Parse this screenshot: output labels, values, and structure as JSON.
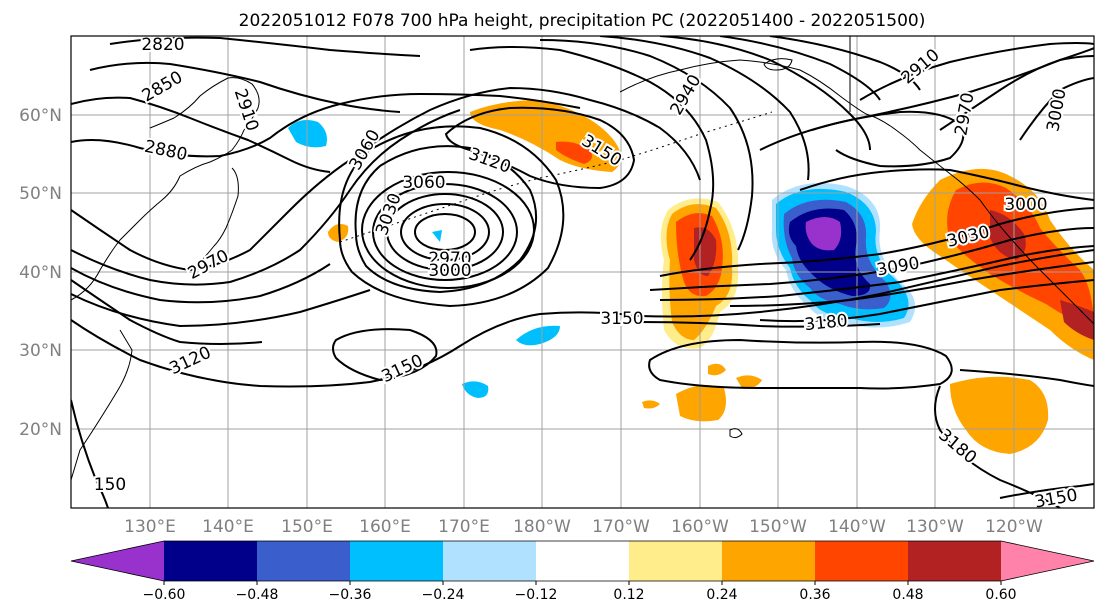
{
  "title": "2022051012 F078 700 hPa height, precipitation PC (2022051400 - 2022051500)",
  "lat_labels": [
    "60°N",
    "50°N",
    "40°N",
    "30°N",
    "20°N"
  ],
  "lon_labels": [
    "130°E",
    "140°E",
    "150°E",
    "160°E",
    "170°E",
    "180°W",
    "170°W",
    "160°W",
    "150°W",
    "140°W",
    "130°W",
    "120°W"
  ],
  "contour_labels": [
    "2820",
    "2850",
    "2910",
    "2880",
    "3060",
    "2940",
    "3120",
    "3150",
    "3060",
    "3030",
    "2970",
    "3000",
    "2970",
    "3120",
    "3150",
    "3150",
    "3180",
    "3090",
    "3030",
    "3000",
    "2910",
    "2970",
    "3000",
    "3180",
    "3150",
    "150"
  ],
  "colorbar": {
    "colors": [
      "#9932cc",
      "#00008b",
      "#3a5fcd",
      "#00bfff",
      "#b0e2ff",
      "#ffffff",
      "#ffec8b",
      "#ffa500",
      "#ff4500",
      "#b22222",
      "#ff82ab"
    ],
    "tick_labels": [
      "−0.60",
      "−0.48",
      "−0.36",
      "−0.24",
      "−0.12",
      "0.12",
      "0.24",
      "0.36",
      "0.48",
      "0.60"
    ]
  }
}
